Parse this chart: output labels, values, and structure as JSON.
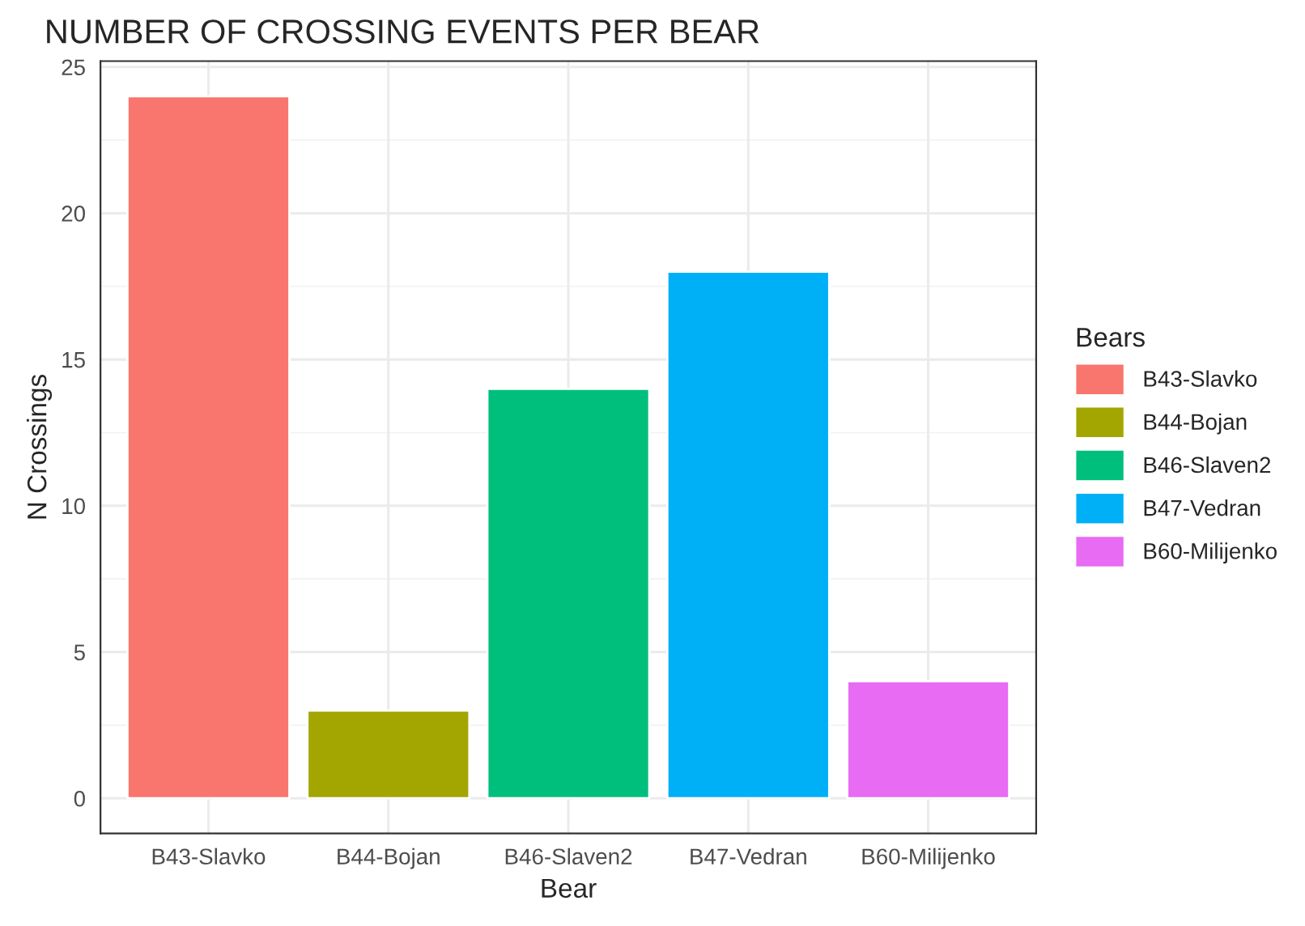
{
  "chart_data": {
    "type": "bar",
    "title": "NUMBER OF CROSSING EVENTS PER BEAR",
    "xlabel": "Bear",
    "ylabel": "N Crossings",
    "legend_title": "Bears",
    "categories": [
      "B43-Slavko",
      "B44-Bojan",
      "B46-Slaven2",
      "B47-Vedran",
      "B60-Milijenko"
    ],
    "series": [
      {
        "name": "B43-Slavko",
        "color": "#f8766d",
        "values": [
          24,
          null,
          null,
          null,
          null
        ]
      },
      {
        "name": "B44-Bojan",
        "color": "#a3a500",
        "values": [
          null,
          3,
          null,
          null,
          null
        ]
      },
      {
        "name": "B46-Slaven2",
        "color": "#00bf7d",
        "values": [
          null,
          null,
          14,
          null,
          null
        ]
      },
      {
        "name": "B47-Vedran",
        "color": "#00b0f6",
        "values": [
          null,
          null,
          null,
          18,
          null
        ]
      },
      {
        "name": "B60-Milijenko",
        "color": "#e76bf3",
        "values": [
          null,
          null,
          null,
          null,
          4
        ]
      }
    ],
    "ylim": [
      -1.2,
      25.2
    ],
    "yticks": [
      0,
      5,
      10,
      15,
      20,
      25
    ],
    "grid": true,
    "legend": "right"
  }
}
